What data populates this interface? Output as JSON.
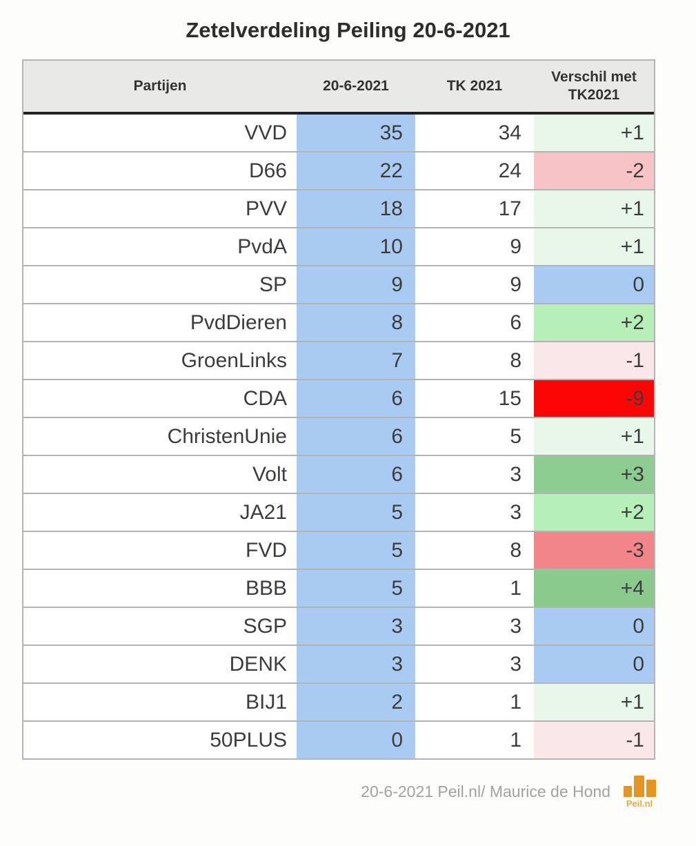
{
  "title": "Zetelverdeling Peiling 20-6-2021",
  "colors": {
    "poll_column": "#a9caf1",
    "header_bg": "#e9e9e7",
    "border": "#b3b3b3",
    "header_underline": "#222222",
    "diff_plus1": "#e9f7eb",
    "diff_plus2": "#b6efb8",
    "diff_plus3": "#8ecd91",
    "diff_plus4": "#8acb8d",
    "diff_zero": "#a9caf1",
    "diff_minus1": "#fae7e7",
    "diff_minus2": "#f8c3c6",
    "diff_minus3": "#f1858a",
    "diff_minus9": "#fb0505",
    "logo_orange": "#e6941f"
  },
  "table": {
    "headers": {
      "party": "Partijen",
      "poll": "20-6-2021",
      "tk": "TK 2021",
      "diff_line1": "Verschil met",
      "diff_line2": "TK2021"
    },
    "rows": [
      {
        "party": "VVD",
        "poll": "35",
        "tk": "34",
        "diff": "+1",
        "diff_bg": "#e9f7eb"
      },
      {
        "party": "D66",
        "poll": "22",
        "tk": "24",
        "diff": "-2",
        "diff_bg": "#f8c3c6"
      },
      {
        "party": "PVV",
        "poll": "18",
        "tk": "17",
        "diff": "+1",
        "diff_bg": "#e9f7eb"
      },
      {
        "party": "PvdA",
        "poll": "10",
        "tk": "9",
        "diff": "+1",
        "diff_bg": "#e9f7eb"
      },
      {
        "party": "SP",
        "poll": "9",
        "tk": "9",
        "diff": "0",
        "diff_bg": "#a9caf1"
      },
      {
        "party": "PvdDieren",
        "poll": "8",
        "tk": "6",
        "diff": "+2",
        "diff_bg": "#b6efb8"
      },
      {
        "party": "GroenLinks",
        "poll": "7",
        "tk": "8",
        "diff": "-1",
        "diff_bg": "#fae7e7"
      },
      {
        "party": "CDA",
        "poll": "6",
        "tk": "15",
        "diff": "-9",
        "diff_bg": "#fb0505"
      },
      {
        "party": "ChristenUnie",
        "poll": "6",
        "tk": "5",
        "diff": "+1",
        "diff_bg": "#e9f7eb"
      },
      {
        "party": "Volt",
        "poll": "6",
        "tk": "3",
        "diff": "+3",
        "diff_bg": "#8ecd91"
      },
      {
        "party": "JA21",
        "poll": "5",
        "tk": "3",
        "diff": "+2",
        "diff_bg": "#b6efb8"
      },
      {
        "party": "FVD",
        "poll": "5",
        "tk": "8",
        "diff": "-3",
        "diff_bg": "#f1858a"
      },
      {
        "party": "BBB",
        "poll": "5",
        "tk": "1",
        "diff": "+4",
        "diff_bg": "#8acb8d"
      },
      {
        "party": "SGP",
        "poll": "3",
        "tk": "3",
        "diff": "0",
        "diff_bg": "#a9caf1"
      },
      {
        "party": "DENK",
        "poll": "3",
        "tk": "3",
        "diff": "0",
        "diff_bg": "#a9caf1"
      },
      {
        "party": "BIJ1",
        "poll": "2",
        "tk": "1",
        "diff": "+1",
        "diff_bg": "#e9f7eb"
      },
      {
        "party": "50PLUS",
        "poll": "0",
        "tk": "1",
        "diff": "-1",
        "diff_bg": "#fae7e7"
      }
    ]
  },
  "footer": {
    "credit": "20-6-2021 Peil.nl/ Maurice de Hond",
    "logo_label": "Peil.nl"
  },
  "chart_data": {
    "type": "table",
    "title": "Zetelverdeling Peiling 20-6-2021",
    "columns": [
      "Partijen",
      "20-6-2021",
      "TK 2021",
      "Verschil met TK2021"
    ],
    "categories": [
      "VVD",
      "D66",
      "PVV",
      "PvdA",
      "SP",
      "PvdDieren",
      "GroenLinks",
      "CDA",
      "ChristenUnie",
      "Volt",
      "JA21",
      "FVD",
      "BBB",
      "SGP",
      "DENK",
      "BIJ1",
      "50PLUS"
    ],
    "series": [
      {
        "name": "20-6-2021",
        "values": [
          35,
          22,
          18,
          10,
          9,
          8,
          7,
          6,
          6,
          6,
          5,
          5,
          5,
          3,
          3,
          2,
          0
        ]
      },
      {
        "name": "TK 2021",
        "values": [
          34,
          24,
          17,
          9,
          9,
          6,
          8,
          15,
          5,
          3,
          3,
          8,
          1,
          3,
          3,
          1,
          1
        ]
      },
      {
        "name": "Verschil met TK2021",
        "values": [
          1,
          -2,
          1,
          1,
          0,
          2,
          -1,
          -9,
          1,
          3,
          2,
          -3,
          4,
          0,
          0,
          1,
          -1
        ]
      }
    ],
    "legend_position": "none",
    "grid": false
  }
}
